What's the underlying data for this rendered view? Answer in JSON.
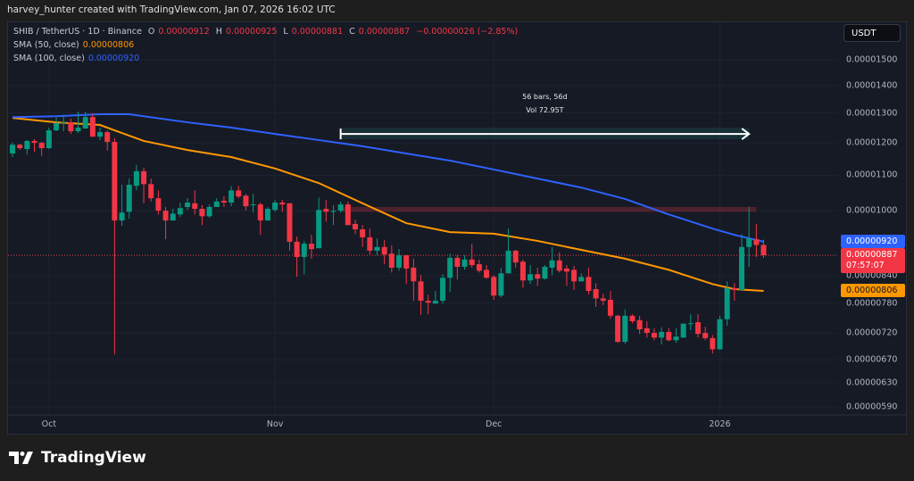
{
  "credit": "harvey_hunter created with TradingView.com, Jan 07, 2026 16:02 UTC",
  "legend": {
    "symbol": "SHIB / TetherUS · 1D · Binance",
    "o_label": "O",
    "o": "0.00000912",
    "h_label": "H",
    "h": "0.00000925",
    "l_label": "L",
    "l": "0.00000881",
    "c_label": "C",
    "c": "0.00000887",
    "change": "−0.00000026 (−2.85%)",
    "sma50_label": "SMA (50, close)",
    "sma50_value": "0.00000806",
    "sma100_label": "SMA (100, close)",
    "sma100_value": "0.00000920"
  },
  "currency_button": "USDT",
  "badges": {
    "sma100": "0.00000920",
    "last_price": "0.00000887",
    "countdown": "07:57:07",
    "sma50": "0.00000806"
  },
  "logo_text": "TradingView",
  "colors": {
    "up": "#089981",
    "down": "#f23645",
    "sma50": "#ff9800",
    "sma100": "#2e62ff",
    "background": "#161a25"
  },
  "chart_data": {
    "type": "candlestick",
    "title": "",
    "yscale": "log",
    "ylim": [
      5.6e-06,
      1.57e-05
    ],
    "grid": true,
    "y_ticks": [
      "0.00001500",
      "0.00001400",
      "0.00001300",
      "0.00001200",
      "0.00001100",
      "0.00001000",
      "0.00000840",
      "0.00000780",
      "0.00000720",
      "0.00000670",
      "0.00000630",
      "0.00000590"
    ],
    "x_ticks": [
      {
        "date": "2025-10-01",
        "label": "Oct"
      },
      {
        "date": "2025-11-01",
        "label": "Nov"
      },
      {
        "date": "2025-12-01",
        "label": "Dec"
      },
      {
        "date": "2026-01-01",
        "label": "2026"
      }
    ],
    "ohlc_fields": [
      "date",
      "open",
      "high",
      "low",
      "close"
    ],
    "candles": [
      [
        "2025-09-26",
        1.166e-05,
        1.2e-05,
        1.155e-05,
        1.194e-05
      ],
      [
        "2025-09-27",
        1.194e-05,
        1.197e-05,
        1.177e-05,
        1.183e-05
      ],
      [
        "2025-09-28",
        1.18e-05,
        1.209e-05,
        1.163e-05,
        1.206e-05
      ],
      [
        "2025-09-29",
        1.206e-05,
        1.212e-05,
        1.172e-05,
        1.2e-05
      ],
      [
        "2025-09-30",
        1.2e-05,
        1.203e-05,
        1.158e-05,
        1.183e-05
      ],
      [
        "2025-10-01",
        1.183e-05,
        1.25e-05,
        1.18e-05,
        1.241e-05
      ],
      [
        "2025-10-02",
        1.241e-05,
        1.284e-05,
        1.238e-05,
        1.265e-05
      ],
      [
        "2025-10-03",
        1.265e-05,
        1.289e-05,
        1.238e-05,
        1.268e-05
      ],
      [
        "2025-10-04",
        1.268e-05,
        1.281e-05,
        1.229e-05,
        1.238e-05
      ],
      [
        "2025-10-05",
        1.238e-05,
        1.305e-05,
        1.232e-05,
        1.25e-05
      ],
      [
        "2025-10-06",
        1.247e-05,
        1.305e-05,
        1.247e-05,
        1.286e-05
      ],
      [
        "2025-10-07",
        1.286e-05,
        1.299e-05,
        1.22e-05,
        1.22e-05
      ],
      [
        "2025-10-08",
        1.22e-05,
        1.25e-05,
        1.209e-05,
        1.235e-05
      ],
      [
        "2025-10-09",
        1.235e-05,
        1.241e-05,
        1.175e-05,
        1.203e-05
      ],
      [
        "2025-10-10",
        1.203e-05,
        1.215e-05,
        6.8e-06,
        9.74e-06
      ],
      [
        "2025-10-11",
        9.74e-06,
        1.072e-05,
        9.6e-06,
        9.95e-06
      ],
      [
        "2025-10-12",
        9.97e-06,
        1.09e-05,
        9.79e-06,
        1.072e-05
      ],
      [
        "2025-10-13",
        1.069e-05,
        1.131e-05,
        1.056e-05,
        1.112e-05
      ],
      [
        "2025-10-14",
        1.112e-05,
        1.122e-05,
        1.02e-05,
        1.074e-05
      ],
      [
        "2025-10-15",
        1.074e-05,
        1.09e-05,
        1.025e-05,
        1.034e-05
      ],
      [
        "2025-10-16",
        1.034e-05,
        1.056e-05,
        9.9e-06,
        1e-05
      ],
      [
        "2025-10-17",
        1e-05,
        1.01e-05,
        9.26e-06,
        9.74e-06
      ],
      [
        "2025-10-18",
        9.74e-06,
        1.005e-05,
        9.74e-06,
        9.92e-06
      ],
      [
        "2025-10-19",
        9.9e-06,
        1.022e-05,
        9.83e-06,
        1.007e-05
      ],
      [
        "2025-10-20",
        1.01e-05,
        1.034e-05,
        1.002e-05,
        1.022e-05
      ],
      [
        "2025-10-21",
        1.02e-05,
        1.056e-05,
        9.9e-06,
        1.005e-05
      ],
      [
        "2025-10-22",
        1.005e-05,
        1.015e-05,
        9.62e-06,
        9.85e-06
      ],
      [
        "2025-10-23",
        9.85e-06,
        1.017e-05,
        9.81e-06,
        1.01e-05
      ],
      [
        "2025-10-24",
        1.01e-05,
        1.034e-05,
        1.01e-05,
        1.025e-05
      ],
      [
        "2025-10-25",
        1.027e-05,
        1.039e-05,
        1.01e-05,
        1.022e-05
      ],
      [
        "2025-10-26",
        1.022e-05,
        1.069e-05,
        1.012e-05,
        1.056e-05
      ],
      [
        "2025-10-27",
        1.056e-05,
        1.069e-05,
        1.034e-05,
        1.039e-05
      ],
      [
        "2025-10-28",
        1.041e-05,
        1.046e-05,
        1e-05,
        1.012e-05
      ],
      [
        "2025-10-29",
        1.015e-05,
        1.046e-05,
        9.95e-06,
        1.017e-05
      ],
      [
        "2025-10-30",
        1.017e-05,
        1.022e-05,
        9.37e-06,
        9.74e-06
      ],
      [
        "2025-10-31",
        9.74e-06,
        1.01e-05,
        9.74e-06,
        1.005e-05
      ],
      [
        "2025-11-01",
        1.002e-05,
        1.029e-05,
        9.97e-06,
        1.022e-05
      ],
      [
        "2025-11-02",
        1.022e-05,
        1.029e-05,
        9.97e-06,
        1.017e-05
      ],
      [
        "2025-11-03",
        1.02e-05,
        1.02e-05,
        8.98e-06,
        9.2e-06
      ],
      [
        "2025-11-04",
        9.2e-06,
        9.33e-06,
        8.37e-06,
        8.83e-06
      ],
      [
        "2025-11-05",
        8.83e-06,
        9.22e-06,
        8.43e-06,
        9.15e-06
      ],
      [
        "2025-11-06",
        9.15e-06,
        9.37e-06,
        8.79e-06,
        9.02e-06
      ],
      [
        "2025-11-07",
        9.04e-06,
        1.036e-05,
        9.04e-06,
        1.002e-05
      ],
      [
        "2025-11-08",
        1.005e-05,
        1.029e-05,
        9.71e-06,
        9.97e-06
      ],
      [
        "2025-11-09",
        9.97e-06,
        1.015e-05,
        9.62e-06,
        1e-05
      ],
      [
        "2025-11-10",
        1e-05,
        1.025e-05,
        9.95e-06,
        1.017e-05
      ],
      [
        "2025-11-11",
        1.017e-05,
        1.025e-05,
        9.62e-06,
        9.62e-06
      ],
      [
        "2025-11-12",
        9.65e-06,
        9.76e-06,
        9.39e-06,
        9.51e-06
      ],
      [
        "2025-11-13",
        9.51e-06,
        9.62e-06,
        9.07e-06,
        9.31e-06
      ],
      [
        "2025-11-14",
        9.31e-06,
        9.53e-06,
        8.89e-06,
        8.98e-06
      ],
      [
        "2025-11-15",
        8.98e-06,
        9.28e-06,
        8.87e-06,
        9.07e-06
      ],
      [
        "2025-11-16",
        9.07e-06,
        9.24e-06,
        8.66e-06,
        8.89e-06
      ],
      [
        "2025-11-17",
        8.91e-06,
        9.11e-06,
        8.47e-06,
        8.58e-06
      ],
      [
        "2025-11-18",
        8.58e-06,
        9.02e-06,
        8.51e-06,
        8.87e-06
      ],
      [
        "2025-11-19",
        8.87e-06,
        8.87e-06,
        8.21e-06,
        8.56e-06
      ],
      [
        "2025-11-20",
        8.58e-06,
        8.79e-06,
        7.85e-06,
        8.27e-06
      ],
      [
        "2025-11-21",
        8.27e-06,
        8.41e-06,
        7.56e-06,
        7.85e-06
      ],
      [
        "2025-11-22",
        7.85e-06,
        7.98e-06,
        7.57e-06,
        7.81e-06
      ],
      [
        "2025-11-23",
        7.79e-06,
        8.06e-06,
        7.79e-06,
        7.85e-06
      ],
      [
        "2025-11-24",
        7.85e-06,
        8.43e-06,
        7.79e-06,
        8.35e-06
      ],
      [
        "2025-11-25",
        8.35e-06,
        8.91e-06,
        8.04e-06,
        8.81e-06
      ],
      [
        "2025-11-26",
        8.81e-06,
        8.87e-06,
        8.31e-06,
        8.6e-06
      ],
      [
        "2025-11-27",
        8.6e-06,
        8.87e-06,
        8.53e-06,
        8.77e-06
      ],
      [
        "2025-11-28",
        8.77e-06,
        9.15e-06,
        8.58e-06,
        8.64e-06
      ],
      [
        "2025-11-29",
        8.66e-06,
        8.77e-06,
        8.47e-06,
        8.51e-06
      ],
      [
        "2025-11-30",
        8.53e-06,
        8.64e-06,
        8.33e-06,
        8.35e-06
      ],
      [
        "2025-12-01",
        8.37e-06,
        8.41e-06,
        7.87e-06,
        7.96e-06
      ],
      [
        "2025-12-02",
        7.96e-06,
        8.58e-06,
        7.92e-06,
        8.45e-06
      ],
      [
        "2025-12-03",
        8.45e-06,
        9.53e-06,
        8.45e-06,
        8.98e-06
      ],
      [
        "2025-12-04",
        8.98e-06,
        9e-06,
        8.58e-06,
        8.7e-06
      ],
      [
        "2025-12-05",
        8.72e-06,
        8.77e-06,
        8.13e-06,
        8.29e-06
      ],
      [
        "2025-12-06",
        8.29e-06,
        8.64e-06,
        8.21e-06,
        8.43e-06
      ],
      [
        "2025-12-07",
        8.43e-06,
        8.58e-06,
        8.17e-06,
        8.33e-06
      ],
      [
        "2025-12-08",
        8.33e-06,
        8.64e-06,
        8.31e-06,
        8.6e-06
      ],
      [
        "2025-12-09",
        8.58e-06,
        9.07e-06,
        8.41e-06,
        8.75e-06
      ],
      [
        "2025-12-10",
        8.75e-06,
        8.94e-06,
        8.47e-06,
        8.51e-06
      ],
      [
        "2025-12-11",
        8.56e-06,
        8.64e-06,
        8.17e-06,
        8.49e-06
      ],
      [
        "2025-12-12",
        8.53e-06,
        8.62e-06,
        8.08e-06,
        8.27e-06
      ],
      [
        "2025-12-13",
        8.27e-06,
        8.45e-06,
        8.27e-06,
        8.37e-06
      ],
      [
        "2025-12-14",
        8.37e-06,
        8.58e-06,
        7.98e-06,
        8.06e-06
      ],
      [
        "2025-12-15",
        8.1e-06,
        8.23e-06,
        7.72e-06,
        7.9e-06
      ],
      [
        "2025-12-16",
        7.9e-06,
        8e-06,
        7.76e-06,
        7.85e-06
      ],
      [
        "2025-12-17",
        7.87e-06,
        8.06e-06,
        7.48e-06,
        7.54e-06
      ],
      [
        "2025-12-18",
        7.54e-06,
        7.56e-06,
        7.01e-06,
        7.03e-06
      ],
      [
        "2025-12-19",
        7.03e-06,
        7.67e-06,
        6.99e-06,
        7.54e-06
      ],
      [
        "2025-12-20",
        7.54e-06,
        7.57e-06,
        7.39e-06,
        7.43e-06
      ],
      [
        "2025-12-21",
        7.45e-06,
        7.54e-06,
        7.18e-06,
        7.27e-06
      ],
      [
        "2025-12-22",
        7.29e-06,
        7.43e-06,
        7.11e-06,
        7.2e-06
      ],
      [
        "2025-12-23",
        7.2e-06,
        7.29e-06,
        7.06e-06,
        7.11e-06
      ],
      [
        "2025-12-24",
        7.11e-06,
        7.31e-06,
        6.98e-06,
        7.22e-06
      ],
      [
        "2025-12-25",
        7.22e-06,
        7.29e-06,
        7.04e-06,
        7.06e-06
      ],
      [
        "2025-12-26",
        7.06e-06,
        7.29e-06,
        7.01e-06,
        7.13e-06
      ],
      [
        "2025-12-27",
        7.11e-06,
        7.39e-06,
        7.11e-06,
        7.38e-06
      ],
      [
        "2025-12-28",
        7.38e-06,
        7.57e-06,
        7.25e-06,
        7.39e-06
      ],
      [
        "2025-12-29",
        7.41e-06,
        7.57e-06,
        7.11e-06,
        7.18e-06
      ],
      [
        "2025-12-30",
        7.2e-06,
        7.32e-06,
        7.06e-06,
        7.1e-06
      ],
      [
        "2025-12-31",
        7.1e-06,
        7.16e-06,
        6.81e-06,
        6.89e-06
      ],
      [
        "2026-01-01",
        6.89e-06,
        7.54e-06,
        6.88e-06,
        7.47e-06
      ],
      [
        "2026-01-02",
        7.47e-06,
        8.27e-06,
        7.34e-06,
        8.12e-06
      ],
      [
        "2026-01-03",
        8.12e-06,
        8.23e-06,
        7.85e-06,
        8.08e-06
      ],
      [
        "2026-01-04",
        8.08e-06,
        9.39e-06,
        8.08e-06,
        9.07e-06
      ],
      [
        "2026-01-05",
        9.07e-06,
        1.01e-05,
        8.6e-06,
        9.28e-06
      ],
      [
        "2026-01-06",
        9.26e-06,
        9.65e-06,
        8.83e-06,
        9.12e-06
      ],
      [
        "2026-01-07",
        9.12e-06,
        9.25e-06,
        8.81e-06,
        8.87e-06
      ]
    ],
    "series": [
      {
        "name": "SMA (50, close)",
        "color": "#ff9800",
        "points": [
          [
            "2025-09-26",
            1.283e-05
          ],
          [
            "2025-10-02",
            1.268e-05
          ],
          [
            "2025-10-08",
            1.259e-05
          ],
          [
            "2025-10-10",
            1.241e-05
          ],
          [
            "2025-10-14",
            1.206e-05
          ],
          [
            "2025-10-20",
            1.177e-05
          ],
          [
            "2025-10-26",
            1.155e-05
          ],
          [
            "2025-11-01",
            1.12e-05
          ],
          [
            "2025-11-07",
            1.077e-05
          ],
          [
            "2025-11-13",
            1.02e-05
          ],
          [
            "2025-11-19",
            9.67e-06
          ],
          [
            "2025-11-25",
            9.44e-06
          ],
          [
            "2025-12-01",
            9.4e-06
          ],
          [
            "2025-12-07",
            9.22e-06
          ],
          [
            "2025-12-13",
            9e-06
          ],
          [
            "2025-12-19",
            8.79e-06
          ],
          [
            "2025-12-25",
            8.53e-06
          ],
          [
            "2025-12-31",
            8.21e-06
          ],
          [
            "2026-01-03",
            8.1e-06
          ],
          [
            "2026-01-07",
            8.06e-06
          ]
        ]
      },
      {
        "name": "SMA (100, close)",
        "color": "#2e62ff",
        "points": [
          [
            "2025-09-26",
            1.286e-05
          ],
          [
            "2025-10-02",
            1.289e-05
          ],
          [
            "2025-10-08",
            1.296e-05
          ],
          [
            "2025-10-12",
            1.296e-05
          ],
          [
            "2025-10-14",
            1.289e-05
          ],
          [
            "2025-10-20",
            1.268e-05
          ],
          [
            "2025-10-26",
            1.25e-05
          ],
          [
            "2025-11-01",
            1.229e-05
          ],
          [
            "2025-11-07",
            1.209e-05
          ],
          [
            "2025-11-13",
            1.189e-05
          ],
          [
            "2025-11-19",
            1.166e-05
          ],
          [
            "2025-11-25",
            1.144e-05
          ],
          [
            "2025-12-01",
            1.117e-05
          ],
          [
            "2025-12-07",
            1.09e-05
          ],
          [
            "2025-12-13",
            1.064e-05
          ],
          [
            "2025-12-19",
            1.032e-05
          ],
          [
            "2025-12-25",
            9.9e-06
          ],
          [
            "2025-12-31",
            9.53e-06
          ],
          [
            "2026-01-03",
            9.37e-06
          ],
          [
            "2026-01-07",
            9.2e-06
          ]
        ]
      }
    ],
    "last_price": 8.87e-06,
    "annotations": {
      "resistance_zone": {
        "from": "2025-11-10",
        "to": "2026-01-06",
        "top": 1.01e-05,
        "bottom": 9.97e-06,
        "color": "#f23645"
      },
      "date_range": {
        "from": "2025-11-10",
        "to": "2026-01-05",
        "price": 1.229e-05,
        "line1": "56 bars, 56d",
        "line2": "Vol 72.95T"
      }
    }
  }
}
